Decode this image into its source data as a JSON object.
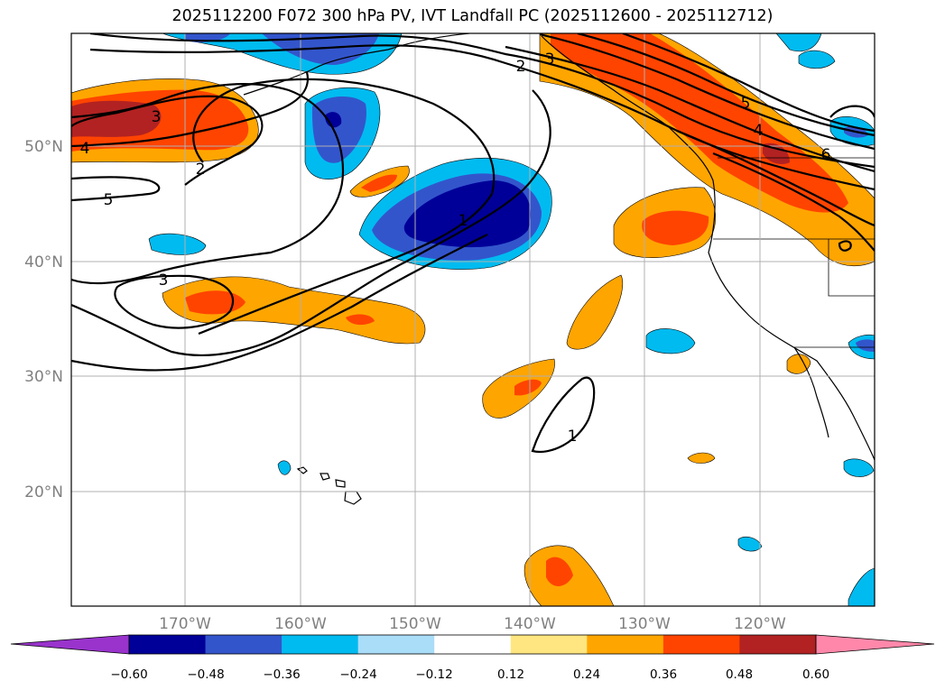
{
  "title": "2025112200 F072 300 hPa PV, IVT Landfall PC (2025112600 - 2025112712)",
  "map": {
    "lat_labels": [
      "50°N",
      "40°N",
      "30°N",
      "20°N"
    ],
    "lon_labels": [
      "170°W",
      "160°W",
      "150°W",
      "140°W",
      "130°W",
      "120°W"
    ],
    "contour_labels": [
      "3",
      "2",
      "3",
      "4",
      "5",
      "2",
      "5",
      "4",
      "6",
      "1",
      "3",
      "1"
    ]
  },
  "colorbar": {
    "ticks": [
      "−0.60",
      "−0.48",
      "−0.36",
      "−0.24",
      "−0.12",
      "0.12",
      "0.24",
      "0.36",
      "0.48",
      "0.60"
    ],
    "colors": [
      "#9933cc",
      "#000099",
      "#3355cc",
      "#00bbf0",
      "#aaddf8",
      "#ffffff",
      "#ffe680",
      "#ffa500",
      "#ff4400",
      "#b22222",
      "#ff88aa"
    ]
  }
}
